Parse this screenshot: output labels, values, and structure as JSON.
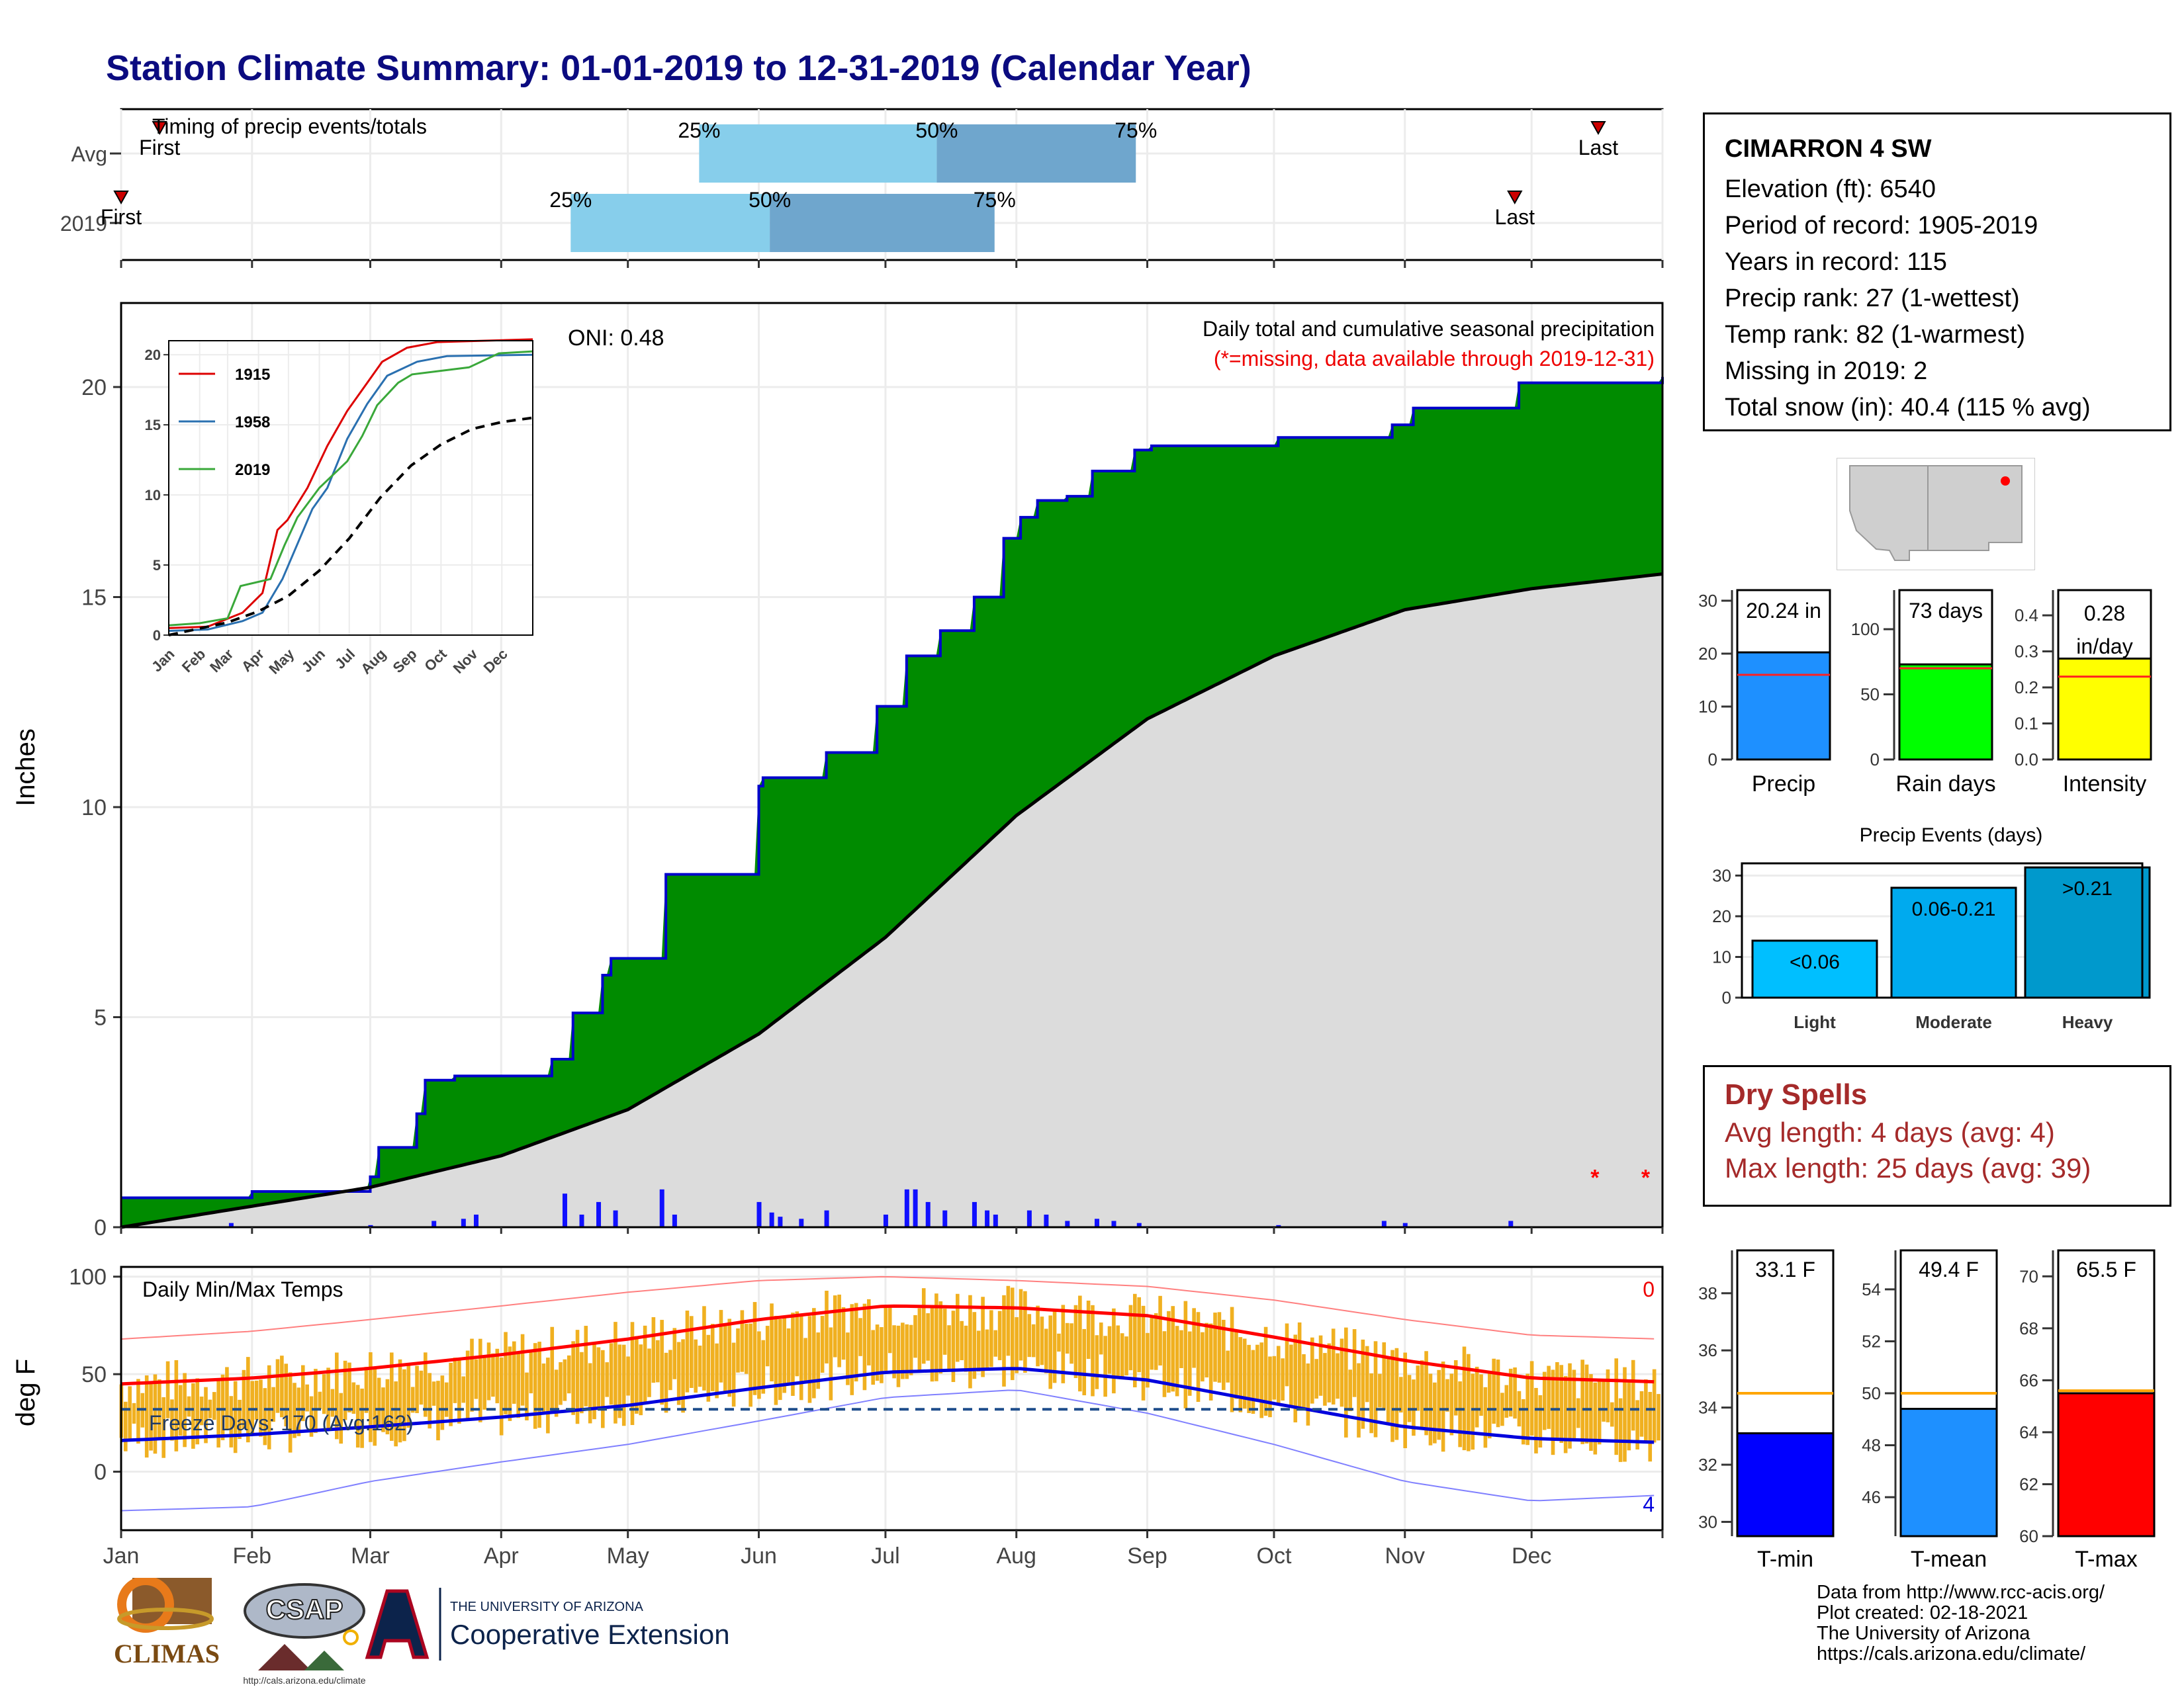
{
  "title": "Station Climate Summary: 01-01-2019 to 12-31-2019 (Calendar Year)",
  "timing_panel": {
    "label": "Timing of precip events/totals",
    "rows": [
      {
        "name": "Avg",
        "p25_month": 5.5,
        "p50_month": 7.35,
        "p75_month": 8.9,
        "first_month": 1.3,
        "last_month": 12.5,
        "first_label": "First",
        "last_label": "Last"
      },
      {
        "name": "2019",
        "p25_month": 4.5,
        "p50_month": 6.05,
        "p75_month": 7.8,
        "first_month": 1.0,
        "last_month": 11.85,
        "first_label": "First",
        "last_label": "Last"
      }
    ],
    "pct_labels": [
      "25%",
      "50%",
      "75%"
    ],
    "colors": {
      "light": "#87ceeb",
      "dark": "#6fa6cd",
      "marker": "#cc0000"
    }
  },
  "chart_data": [
    {
      "type": "area",
      "name": "main-precip",
      "title": "Daily total and cumulative seasonal precipitation",
      "subtitle": "(*=missing, data available through 2019-12-31)",
      "annotation": "ONI: 0.48",
      "ylabel": "Inches",
      "ylim": [
        0,
        22
      ],
      "yticks": [
        0,
        5,
        10,
        15,
        20
      ],
      "xlim": [
        1,
        366
      ],
      "x_month_labels": [
        "Jan",
        "Feb",
        "Mar",
        "Apr",
        "May",
        "Jun",
        "Jul",
        "Aug",
        "Sep",
        "Oct",
        "Nov",
        "Dec"
      ],
      "cumulative_2019": [
        [
          1,
          0.7
        ],
        [
          32,
          0.85
        ],
        [
          60,
          1.2
        ],
        [
          62,
          1.9
        ],
        [
          71,
          2.7
        ],
        [
          73,
          3.5
        ],
        [
          80,
          3.6
        ],
        [
          103,
          4.0
        ],
        [
          108,
          5.1
        ],
        [
          115,
          6.0
        ],
        [
          117,
          6.4
        ],
        [
          128,
          6.4
        ],
        [
          130,
          8.4
        ],
        [
          150,
          8.4
        ],
        [
          152,
          10.5
        ],
        [
          153,
          10.7
        ],
        [
          165,
          10.7
        ],
        [
          168,
          11.3
        ],
        [
          180,
          12.4
        ],
        [
          187,
          13.6
        ],
        [
          195,
          14.2
        ],
        [
          201,
          14.2
        ],
        [
          203,
          15.0
        ],
        [
          210,
          16.4
        ],
        [
          214,
          16.9
        ],
        [
          218,
          17.3
        ],
        [
          225,
          17.4
        ],
        [
          231,
          18.0
        ],
        [
          241,
          18.5
        ],
        [
          245,
          18.6
        ],
        [
          270,
          18.6
        ],
        [
          275,
          18.8
        ],
        [
          300,
          18.8
        ],
        [
          302,
          19.1
        ],
        [
          307,
          19.5
        ],
        [
          330,
          19.5
        ],
        [
          332,
          20.1
        ],
        [
          366,
          20.24
        ]
      ],
      "cumulative_avg": [
        [
          1,
          0.0
        ],
        [
          32,
          0.5
        ],
        [
          60,
          0.95
        ],
        [
          91,
          1.7
        ],
        [
          121,
          2.8
        ],
        [
          152,
          4.6
        ],
        [
          182,
          6.9
        ],
        [
          213,
          9.8
        ],
        [
          244,
          12.1
        ],
        [
          274,
          13.6
        ],
        [
          305,
          14.7
        ],
        [
          335,
          15.2
        ],
        [
          366,
          15.55
        ]
      ],
      "daily_precip": [
        [
          27,
          0.1
        ],
        [
          60,
          0.05
        ],
        [
          75,
          0.15
        ],
        [
          82,
          0.2
        ],
        [
          85,
          0.3
        ],
        [
          106,
          0.8
        ],
        [
          110,
          0.3
        ],
        [
          114,
          0.6
        ],
        [
          118,
          0.4
        ],
        [
          129,
          0.9
        ],
        [
          132,
          0.3
        ],
        [
          152,
          0.6
        ],
        [
          155,
          0.35
        ],
        [
          157,
          0.25
        ],
        [
          162,
          0.2
        ],
        [
          168,
          0.4
        ],
        [
          182,
          0.3
        ],
        [
          187,
          0.9
        ],
        [
          189,
          0.9
        ],
        [
          192,
          0.6
        ],
        [
          196,
          0.4
        ],
        [
          203,
          0.6
        ],
        [
          206,
          0.4
        ],
        [
          208,
          0.3
        ],
        [
          216,
          0.4
        ],
        [
          220,
          0.3
        ],
        [
          225,
          0.15
        ],
        [
          232,
          0.2
        ],
        [
          236,
          0.15
        ],
        [
          242,
          0.1
        ],
        [
          275,
          0.05
        ],
        [
          300,
          0.15
        ],
        [
          305,
          0.1
        ],
        [
          330,
          0.15
        ]
      ],
      "missing_days": [
        350,
        362
      ],
      "colors": {
        "cumulative_fill": "#008b00",
        "cumulative_line": "#0000cc",
        "avg_fill": "#dcdcdc",
        "avg_line": "#000000",
        "daily": "#1010ff",
        "missing": "#ff0000"
      }
    },
    {
      "type": "line",
      "name": "inset-cumulative",
      "ylim": [
        0,
        21
      ],
      "yticks": [
        0,
        5,
        10,
        15,
        20
      ],
      "x_month_labels": [
        "Jan",
        "Feb",
        "Mar",
        "Apr",
        "May",
        "Jun",
        "Jul",
        "Aug",
        "Sep",
        "Oct",
        "Nov",
        "Dec"
      ],
      "series": [
        {
          "name": "1915",
          "color": "#dd0000",
          "values": [
            [
              1,
              0.5
            ],
            [
              40,
              0.6
            ],
            [
              75,
              1.6
            ],
            [
              95,
              3.0
            ],
            [
              110,
              7.5
            ],
            [
              120,
              8.2
            ],
            [
              140,
              10.5
            ],
            [
              160,
              13.5
            ],
            [
              180,
              16.0
            ],
            [
              200,
              18.0
            ],
            [
              215,
              19.5
            ],
            [
              240,
              20.5
            ],
            [
              270,
              20.9
            ],
            [
              366,
              21.1
            ]
          ]
        },
        {
          "name": "1958",
          "color": "#2a70b0",
          "values": [
            [
              1,
              0.3
            ],
            [
              40,
              0.4
            ],
            [
              75,
              1.0
            ],
            [
              95,
              1.6
            ],
            [
              115,
              4.0
            ],
            [
              130,
              6.5
            ],
            [
              145,
              9.0
            ],
            [
              160,
              10.5
            ],
            [
              180,
              14.0
            ],
            [
              200,
              16.5
            ],
            [
              220,
              18.5
            ],
            [
              250,
              19.5
            ],
            [
              280,
              19.9
            ],
            [
              366,
              20.0
            ]
          ]
        },
        {
          "name": "2019",
          "color": "#3aa83a",
          "values": [
            [
              1,
              0.7
            ],
            [
              32,
              0.85
            ],
            [
              60,
              1.2
            ],
            [
              73,
              3.5
            ],
            [
              103,
              4.0
            ],
            [
              117,
              6.4
            ],
            [
              130,
              8.4
            ],
            [
              152,
              10.5
            ],
            [
              180,
              12.4
            ],
            [
              195,
              14.2
            ],
            [
              210,
              16.4
            ],
            [
              231,
              18.0
            ],
            [
              245,
              18.6
            ],
            [
              302,
              19.1
            ],
            [
              332,
              20.1
            ],
            [
              366,
              20.24
            ]
          ]
        },
        {
          "name": "Avg",
          "color": "#000000",
          "dashed": true,
          "values": [
            [
              1,
              0.0
            ],
            [
              60,
              0.9
            ],
            [
              91,
              1.7
            ],
            [
              121,
              2.8
            ],
            [
              152,
              4.6
            ],
            [
              182,
              6.9
            ],
            [
              213,
              9.8
            ],
            [
              244,
              12.1
            ],
            [
              274,
              13.6
            ],
            [
              305,
              14.7
            ],
            [
              335,
              15.2
            ],
            [
              366,
              15.5
            ]
          ]
        }
      ]
    },
    {
      "type": "line",
      "name": "daily-temps",
      "title": "Daily Min/Max Temps",
      "ylabel": "deg F",
      "ylim": [
        -30,
        105
      ],
      "yticks": [
        0,
        50,
        100
      ],
      "freeze_label": "Freeze Days: 170 (Avg:162)",
      "freeze_line": 32,
      "count_top": "0",
      "count_bottom": "4",
      "normal_max": [
        [
          1,
          45
        ],
        [
          32,
          48
        ],
        [
          60,
          53
        ],
        [
          91,
          60
        ],
        [
          121,
          68
        ],
        [
          152,
          78
        ],
        [
          182,
          85
        ],
        [
          213,
          84
        ],
        [
          244,
          80
        ],
        [
          274,
          69
        ],
        [
          305,
          57
        ],
        [
          335,
          48
        ],
        [
          366,
          46
        ]
      ],
      "normal_min": [
        [
          1,
          16
        ],
        [
          32,
          19
        ],
        [
          60,
          23
        ],
        [
          91,
          28
        ],
        [
          121,
          34
        ],
        [
          152,
          43
        ],
        [
          182,
          51
        ],
        [
          213,
          53
        ],
        [
          244,
          47
        ],
        [
          274,
          35
        ],
        [
          305,
          23
        ],
        [
          335,
          17
        ],
        [
          366,
          15
        ]
      ],
      "record_max": [
        [
          1,
          68
        ],
        [
          32,
          72
        ],
        [
          60,
          78
        ],
        [
          91,
          85
        ],
        [
          121,
          92
        ],
        [
          152,
          98
        ],
        [
          182,
          100
        ],
        [
          213,
          98
        ],
        [
          244,
          95
        ],
        [
          274,
          88
        ],
        [
          305,
          78
        ],
        [
          335,
          70
        ],
        [
          366,
          68
        ]
      ],
      "record_min": [
        [
          1,
          -20
        ],
        [
          32,
          -18
        ],
        [
          60,
          -5
        ],
        [
          91,
          5
        ],
        [
          121,
          14
        ],
        [
          152,
          26
        ],
        [
          182,
          38
        ],
        [
          213,
          42
        ],
        [
          244,
          30
        ],
        [
          274,
          14
        ],
        [
          305,
          -5
        ],
        [
          335,
          -15
        ],
        [
          366,
          -12
        ]
      ],
      "colors": {
        "bars": "#f0b020",
        "normal_max": "#ff0000",
        "normal_min": "#0000dd",
        "record_max": "#ff8080",
        "record_min": "#8080ff",
        "freeze": "#1f4e8c"
      }
    },
    {
      "type": "bar",
      "name": "precip-summary",
      "categories": [
        "Precip",
        "Rain days",
        "Intensity"
      ],
      "values": [
        20.24,
        73,
        0.28
      ],
      "labels": [
        "20.24 in",
        "73 days",
        "0.28 in/day"
      ],
      "averages": [
        16.0,
        70,
        0.23
      ],
      "ylims": [
        [
          0,
          32
        ],
        [
          0,
          130
        ],
        [
          0,
          0.47
        ]
      ],
      "yticks": [
        [
          0,
          10,
          20,
          30
        ],
        [
          0,
          50,
          100
        ],
        [
          0.0,
          0.1,
          0.2,
          0.3,
          0.4
        ]
      ],
      "colors": [
        "#1e90ff",
        "#00ff00",
        "#ffff00"
      ]
    },
    {
      "type": "bar",
      "name": "precip-events",
      "title": "Precip Events (days)",
      "categories": [
        "Light",
        "Moderate",
        "Heavy"
      ],
      "values": [
        14,
        27,
        32
      ],
      "labels": [
        "<0.06",
        "0.06-0.21",
        ">0.21"
      ],
      "ylim": [
        0,
        33
      ],
      "yticks": [
        0,
        10,
        20,
        30
      ],
      "colors": [
        "#00bfff",
        "#00aaee",
        "#0099cc"
      ]
    },
    {
      "type": "bar",
      "name": "temp-summary",
      "categories": [
        "T-min",
        "T-mean",
        "T-max"
      ],
      "values": [
        33.1,
        49.4,
        65.5
      ],
      "labels": [
        "33.1 F",
        "49.4 F",
        "65.5 F"
      ],
      "averages": [
        34.5,
        50.0,
        65.6
      ],
      "ylims": [
        [
          29.5,
          39.5
        ],
        [
          44.5,
          55.5
        ],
        [
          60,
          71
        ]
      ],
      "yticks": [
        [
          30,
          32,
          34,
          36,
          38
        ],
        [
          46,
          48,
          50,
          52,
          54
        ],
        [
          60,
          62,
          64,
          66,
          68,
          70
        ]
      ],
      "colors": [
        "#0000ff",
        "#1e90ff",
        "#ff0000"
      ]
    }
  ],
  "station": {
    "name": "CIMARRON 4 SW",
    "rows": [
      "Elevation (ft): 6540",
      "Period of record: 1905-2019",
      "Years in record: 115",
      "Precip rank: 27 (1-wettest)",
      "Temp rank: 82 (1-warmest)",
      "Missing in 2019: 2",
      "Total snow (in): 40.4 (115 % avg)"
    ]
  },
  "dry_spells": {
    "title": "Dry Spells",
    "avg": "Avg length: 4 days (avg: 4)",
    "max": "Max length: 25 days (avg: 39)"
  },
  "footer": {
    "lines": [
      "Data from http://www.rcc-acis.org/",
      "Plot created: 02-18-2021",
      "The University of Arizona",
      "https://cals.arizona.edu/climate/"
    ],
    "logos": {
      "climas": "CLIMAS",
      "csap": "CSAP",
      "csap_url": "http://cals.arizona.edu/climate",
      "ua_top": "THE UNIVERSITY OF ARIZONA",
      "ua_bottom": "Cooperative Extension"
    }
  }
}
